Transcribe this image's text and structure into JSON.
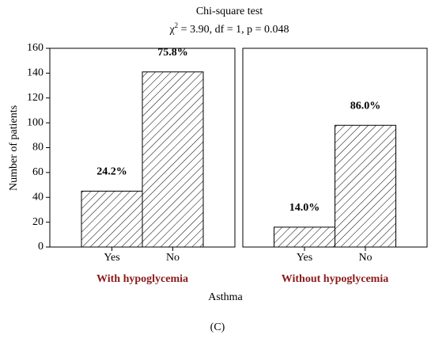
{
  "chart_data": {
    "type": "bar",
    "title": "Chi-square test",
    "subtitle": {
      "symbol": "χ",
      "superscript": "2",
      "text": " = 3.90,  df = 1,  p = 0.048"
    },
    "ylabel": "Number of patients",
    "xlabel": "Asthma",
    "ylim": [
      0,
      160
    ],
    "yticks": [
      0,
      20,
      40,
      60,
      80,
      100,
      120,
      140,
      160
    ],
    "color": "#000000",
    "hatch": true,
    "panel_title_color": "#8b1a1a",
    "panels": [
      {
        "name": "With hypoglycemia",
        "categories": [
          "Yes",
          "No"
        ],
        "values": [
          45,
          141
        ],
        "bar_labels": [
          "24.2%",
          "75.8%"
        ]
      },
      {
        "name": "Without hypoglycemia",
        "categories": [
          "Yes",
          "No"
        ],
        "values": [
          16,
          98
        ],
        "bar_labels": [
          "14.0%",
          "86.0%"
        ]
      }
    ]
  },
  "caption": "(C)"
}
